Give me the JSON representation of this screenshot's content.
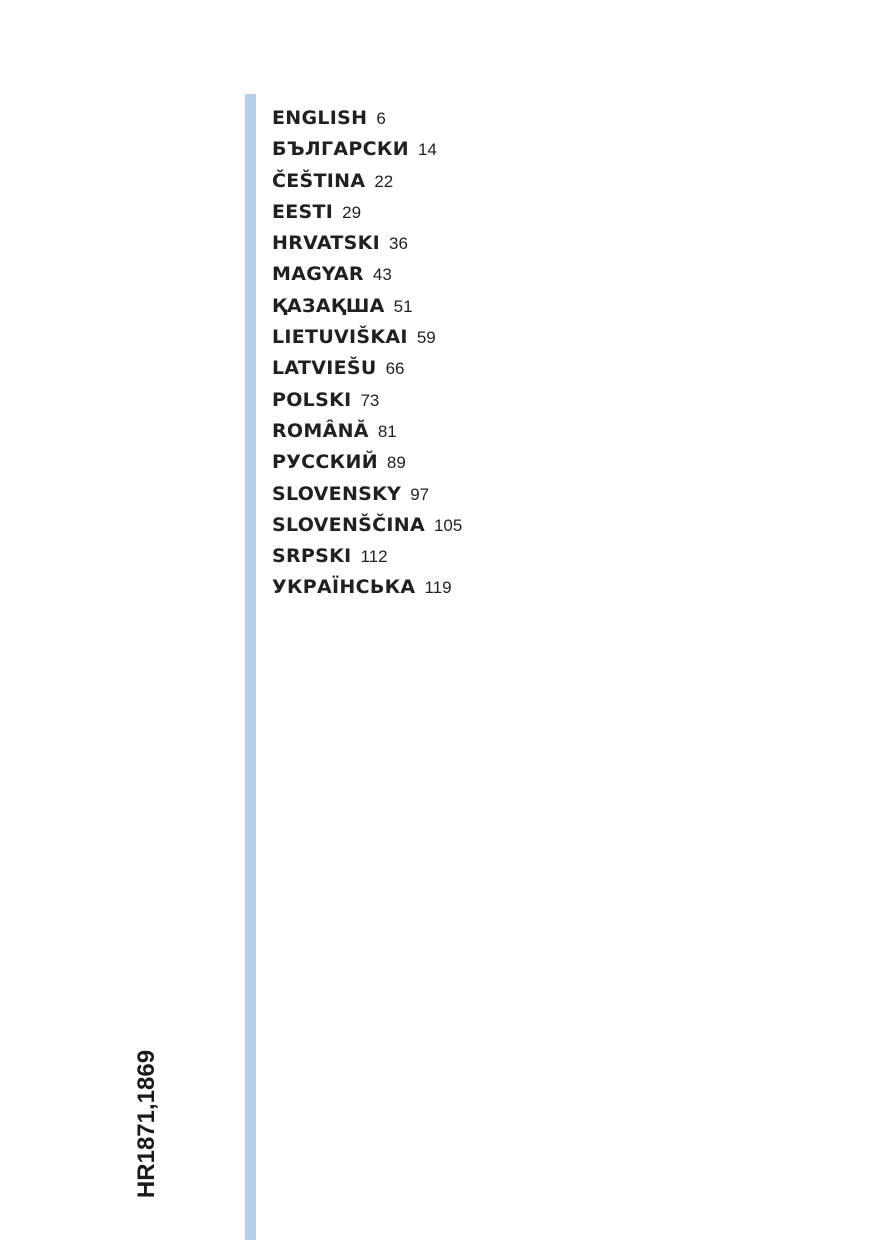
{
  "accent_color": "#b3d1ee",
  "model": "HR1871,1869",
  "toc": [
    {
      "language": "ENGLISH",
      "page": "6"
    },
    {
      "language": "БЪЛГАРСКИ",
      "page": "14"
    },
    {
      "language": "ČEŠTINA",
      "page": "22"
    },
    {
      "language": "EESTI",
      "page": "29"
    },
    {
      "language": "HRVATSKI",
      "page": "36"
    },
    {
      "language": "MAGYAR",
      "page": "43"
    },
    {
      "language": "ҚАЗАҚША",
      "page": "51"
    },
    {
      "language": "LIETUVIŠKAI",
      "page": "59"
    },
    {
      "language": "LATVIEŠU",
      "page": "66"
    },
    {
      "language": "POLSKI",
      "page": "73"
    },
    {
      "language": "ROMÂNĂ",
      "page": "81"
    },
    {
      "language": "РУССКИЙ",
      "page": "89"
    },
    {
      "language": "SLOVENSKY",
      "page": "97"
    },
    {
      "language": "SLOVENŠČINA",
      "page": "105"
    },
    {
      "language": "SRPSKI",
      "page": "112"
    },
    {
      "language": "УКРАЇНСЬКА",
      "page": "119"
    }
  ]
}
